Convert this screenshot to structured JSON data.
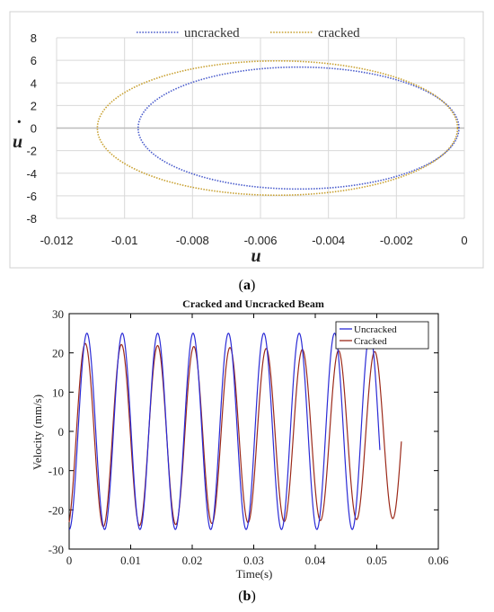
{
  "chart_data": [
    {
      "type": "line",
      "caption_letter": "a",
      "xlabel": "u",
      "ylabel": "u",
      "xlim": [
        -0.012,
        0
      ],
      "ylim": [
        -8,
        8
      ],
      "x_ticks": [
        "-0.012",
        "-0.01",
        "-0.008",
        "-0.006",
        "-0.004",
        "-0.002",
        "0"
      ],
      "y_ticks": [
        "-8",
        "-6",
        "-4",
        "-2",
        "0",
        "2",
        "4",
        "6",
        "8"
      ],
      "grid": true,
      "legend_position": "top",
      "series": [
        {
          "name": "uncracked",
          "color": "#4a5ccc",
          "center_x": -0.00488,
          "radius_x": 0.00472,
          "amplitude_y": 5.4
        },
        {
          "name": "cracked",
          "color": "#c8a030",
          "center_x": -0.0055,
          "radius_x": 0.0053,
          "amplitude_y": 5.95
        }
      ]
    },
    {
      "type": "line",
      "caption_letter": "b",
      "title": "Cracked and Uncracked Beam",
      "xlabel": "Time(s)",
      "ylabel": "Velocity (mm/s)",
      "xlim": [
        0,
        0.06
      ],
      "ylim": [
        -30,
        30
      ],
      "x_ticks": [
        "0",
        "0.01",
        "0.02",
        "0.03",
        "0.04",
        "0.05",
        "0.06"
      ],
      "y_ticks": [
        "-30",
        "-20",
        "-10",
        "0",
        "10",
        "20",
        "30"
      ],
      "grid": false,
      "legend_position": "top-right",
      "series": [
        {
          "name": "Uncracked",
          "color": "#2b2bd6",
          "t_end": 0.0505,
          "amplitude": 25,
          "period": 0.00575,
          "phase_time": 0.00145,
          "offset": 0,
          "decay": 0
        },
        {
          "name": "Cracked",
          "color": "#9c2a1a",
          "t_end": 0.054,
          "amplitude": 23.5,
          "period": 0.00588,
          "phase_time": 0.00115,
          "offset": -1.0,
          "decay": 0.1
        }
      ]
    }
  ]
}
